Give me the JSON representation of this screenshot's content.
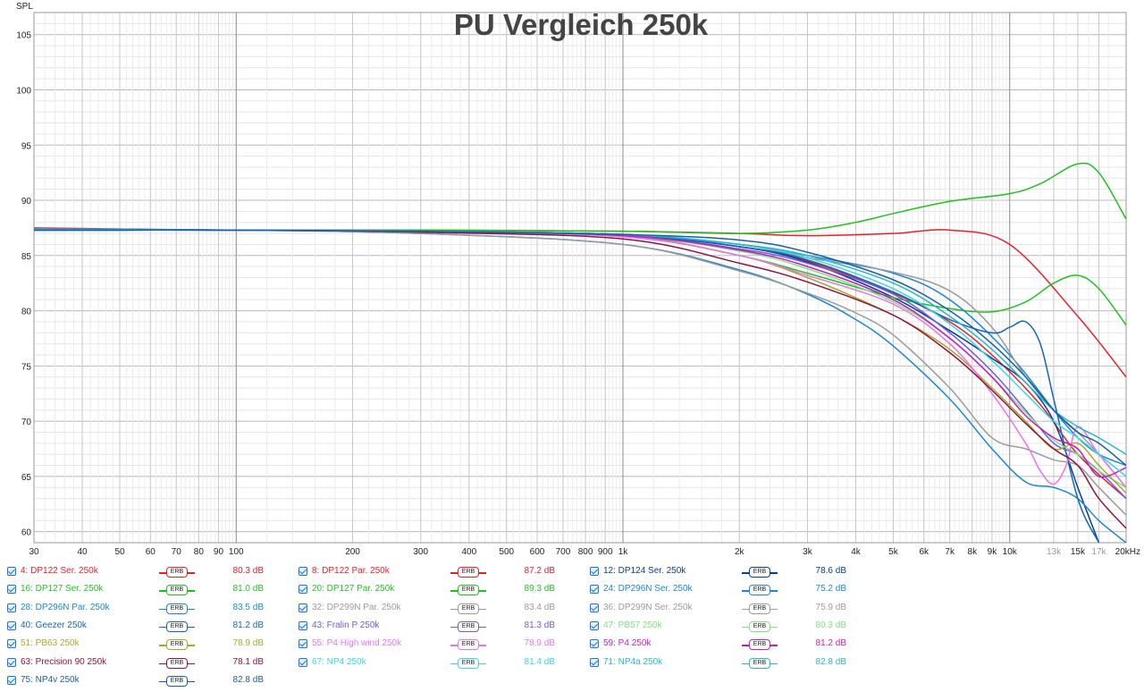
{
  "chart_data": {
    "type": "line",
    "title": "PU Vergleich 250k",
    "ylabel": "SPL",
    "x_scale": "log",
    "xlim": [
      30,
      20000
    ],
    "ylim": [
      59,
      107
    ],
    "grid": true,
    "y_ticks": [
      60,
      65,
      70,
      75,
      80,
      85,
      90,
      95,
      100,
      105
    ],
    "x_ticks": [
      {
        "v": 30,
        "label": "30",
        "light": false
      },
      {
        "v": 40,
        "label": "40",
        "light": false
      },
      {
        "v": 50,
        "label": "50",
        "light": false
      },
      {
        "v": 60,
        "label": "60",
        "light": false
      },
      {
        "v": 70,
        "label": "70",
        "light": false
      },
      {
        "v": 80,
        "label": "80",
        "light": false
      },
      {
        "v": 90,
        "label": "90",
        "light": false
      },
      {
        "v": 100,
        "label": "100",
        "light": false
      },
      {
        "v": 200,
        "label": "200",
        "light": false
      },
      {
        "v": 300,
        "label": "300",
        "light": false
      },
      {
        "v": 400,
        "label": "400",
        "light": false
      },
      {
        "v": 500,
        "label": "500",
        "light": false
      },
      {
        "v": 600,
        "label": "600",
        "light": false
      },
      {
        "v": 700,
        "label": "700",
        "light": false
      },
      {
        "v": 800,
        "label": "800",
        "light": false
      },
      {
        "v": 900,
        "label": "900",
        "light": false
      },
      {
        "v": 1000,
        "label": "1k",
        "light": false
      },
      {
        "v": 2000,
        "label": "2k",
        "light": false
      },
      {
        "v": 3000,
        "label": "3k",
        "light": false
      },
      {
        "v": 4000,
        "label": "4k",
        "light": false
      },
      {
        "v": 5000,
        "label": "5k",
        "light": false
      },
      {
        "v": 6000,
        "label": "6k",
        "light": false
      },
      {
        "v": 7000,
        "label": "7k",
        "light": false
      },
      {
        "v": 8000,
        "label": "8k",
        "light": false
      },
      {
        "v": 9000,
        "label": "9k",
        "light": false
      },
      {
        "v": 10000,
        "label": "10k",
        "light": false
      },
      {
        "v": 13000,
        "label": "13k",
        "light": true
      },
      {
        "v": 15000,
        "label": "15k",
        "light": false
      },
      {
        "v": 17000,
        "label": "17k",
        "light": true
      },
      {
        "v": 20000,
        "label": "20kHz",
        "light": false
      }
    ],
    "legend_placement": "bottom",
    "legend_tag": "ERB",
    "series": [
      {
        "name": "4: DP122 Ser. 250k",
        "color": "#e8202a",
        "value_label": "80.3 dB",
        "x": [
          30,
          50,
          100,
          300,
          1000,
          2000,
          3000,
          5000,
          7000,
          10000,
          15000,
          20000
        ],
        "y": [
          87.5,
          87.4,
          87.3,
          87.3,
          87.2,
          87.0,
          86.8,
          87.0,
          87.3,
          86.0,
          79.5,
          74.0
        ]
      },
      {
        "name": "8: DP122 Par. 250k",
        "color": "#e8202a",
        "value_label": "87.2 dB",
        "x": [
          30,
          100,
          300,
          1000,
          2000,
          3000,
          5000,
          7000,
          9000,
          12000,
          15000,
          20000
        ],
        "y": [
          87.4,
          87.3,
          87.2,
          86.9,
          85.8,
          84.5,
          81.6,
          79.0,
          76.0,
          71.5,
          67.0,
          63.0
        ]
      },
      {
        "name": "12: DP124 Ser. 250k",
        "color": "#0b3d91",
        "value_label": "78.6 dB",
        "x": [
          30,
          100,
          300,
          1000,
          2000,
          3000,
          5000,
          7000,
          9000,
          11000,
          13000,
          15000,
          17000
        ],
        "y": [
          87.3,
          87.3,
          87.2,
          86.8,
          85.8,
          84.4,
          81.2,
          78.2,
          75.7,
          73.5,
          70.0,
          64.0,
          59.0
        ]
      },
      {
        "name": "16: DP127 Ser. 250k",
        "color": "#1ec21e",
        "value_label": "81.0 dB",
        "x": [
          30,
          100,
          300,
          1000,
          2000,
          3000,
          5000,
          7000,
          9000,
          11000,
          13000,
          15000,
          17000,
          20000
        ],
        "y": [
          87.3,
          87.3,
          87.2,
          86.8,
          85.0,
          83.4,
          81.2,
          80.2,
          79.9,
          80.8,
          82.5,
          83.2,
          82.0,
          78.7
        ]
      },
      {
        "name": "20: DP127 Par. 250k",
        "color": "#1ec21e",
        "value_label": "89.3 dB",
        "x": [
          30,
          100,
          300,
          1000,
          2000,
          3000,
          4000,
          5000,
          7000,
          10000,
          12000,
          15000,
          17000,
          20000
        ],
        "y": [
          87.4,
          87.3,
          87.3,
          87.2,
          87.0,
          87.3,
          88.0,
          88.8,
          89.9,
          90.6,
          91.5,
          93.3,
          92.5,
          88.3
        ]
      },
      {
        "name": "24: DP296N Ser. 250k",
        "color": "#1b87d6",
        "value_label": "75.2 dB",
        "x": [
          30,
          100,
          300,
          1000,
          2000,
          3000,
          4000,
          5000,
          7000,
          9000,
          11000,
          13000,
          15000,
          17000,
          20000
        ],
        "y": [
          87.4,
          87.3,
          87.0,
          86.0,
          83.7,
          81.5,
          79.2,
          76.8,
          72.0,
          67.5,
          64.5,
          64.0,
          63.0,
          61.0,
          59.0
        ]
      },
      {
        "name": "28: DP296N Par. 250k",
        "color": "#1b87d6",
        "value_label": "83.5 dB",
        "x": [
          30,
          100,
          300,
          1000,
          2000,
          3000,
          5000,
          7000,
          10000,
          13000,
          15000,
          17000,
          20000
        ],
        "y": [
          87.4,
          87.3,
          87.2,
          86.9,
          86.0,
          85.0,
          83.4,
          81.0,
          76.0,
          71.0,
          68.5,
          67.0,
          66.0
        ]
      },
      {
        "name": "32: DP299N Par. 250k",
        "color": "#9b9b9b",
        "value_label": "83.4 dB",
        "x": [
          30,
          100,
          300,
          1000,
          2000,
          3000,
          5000,
          7000,
          9000,
          11000,
          13000,
          15000,
          17000,
          20000
        ],
        "y": [
          87.4,
          87.3,
          87.2,
          86.9,
          86.0,
          84.8,
          83.5,
          81.8,
          78.5,
          74.0,
          71.0,
          69.0,
          67.0,
          64.0
        ]
      },
      {
        "name": "36: DP299N Ser. 250k",
        "color": "#9b9b9b",
        "value_label": "75.9 dB",
        "x": [
          30,
          100,
          300,
          1000,
          2000,
          3000,
          4000,
          5000,
          7000,
          9000,
          11000,
          13000,
          15000,
          17000,
          20000
        ],
        "y": [
          87.4,
          87.3,
          87.0,
          86.0,
          83.6,
          81.6,
          79.8,
          77.8,
          73.0,
          68.5,
          67.5,
          66.5,
          66.0,
          64.0,
          61.5
        ]
      },
      {
        "name": "40: Geezer 250k",
        "color": "#1566b8",
        "value_label": "81.2 dB",
        "x": [
          30,
          100,
          300,
          1000,
          2000,
          3000,
          5000,
          7000,
          9000,
          10000,
          11000,
          12000,
          13000,
          15000,
          17000
        ],
        "y": [
          87.3,
          87.3,
          87.2,
          86.9,
          85.8,
          84.6,
          81.7,
          79.2,
          78.0,
          78.5,
          79.0,
          77.0,
          72.0,
          63.0,
          59.0
        ]
      },
      {
        "name": "43: Fralin P 250k",
        "color": "#6a5de0",
        "value_label": "81.3 dB",
        "x": [
          30,
          100,
          300,
          1000,
          2000,
          3000,
          5000,
          7000,
          9000,
          11000,
          13000,
          15000,
          17000,
          20000
        ],
        "y": [
          87.3,
          87.3,
          87.2,
          86.8,
          85.6,
          84.3,
          81.5,
          78.0,
          74.5,
          71.0,
          68.0,
          67.0,
          65.5,
          63.0
        ]
      },
      {
        "name": "47: PB57 250k",
        "color": "#7fe07f",
        "value_label": "80.3 dB",
        "x": [
          30,
          100,
          300,
          1000,
          2000,
          3000,
          5000,
          7000,
          9000,
          11000,
          13000,
          15000,
          17000,
          20000
        ],
        "y": [
          87.4,
          87.3,
          87.2,
          86.8,
          85.4,
          83.8,
          80.8,
          77.5,
          74.0,
          70.8,
          68.3,
          67.0,
          65.5,
          64.0
        ]
      },
      {
        "name": "51: PB63 250k",
        "color": "#a8a82a",
        "value_label": "78.9 dB",
        "x": [
          30,
          100,
          300,
          1000,
          2000,
          3000,
          5000,
          7000,
          9000,
          11000,
          13000,
          15000,
          17000,
          20000
        ],
        "y": [
          87.4,
          87.3,
          87.2,
          86.7,
          85.0,
          83.0,
          79.6,
          76.5,
          73.0,
          70.0,
          67.5,
          68.0,
          66.0,
          63.5
        ]
      },
      {
        "name": "55: P4 High wind 250k",
        "color": "#ee72ee",
        "value_label": "78.9 dB",
        "x": [
          30,
          100,
          300,
          1000,
          2000,
          3000,
          5000,
          7000,
          9000,
          11000,
          12000,
          13000,
          14000,
          15000,
          17000,
          20000
        ],
        "y": [
          87.4,
          87.3,
          87.2,
          86.7,
          85.0,
          83.2,
          80.6,
          77.0,
          72.5,
          68.0,
          65.5,
          64.3,
          66.0,
          69.5,
          67.0,
          64.0
        ]
      },
      {
        "name": "59: P4 250k",
        "color": "#c41cc4",
        "value_label": "81.2 dB",
        "x": [
          30,
          100,
          300,
          1000,
          2000,
          3000,
          5000,
          7000,
          9000,
          11000,
          13000,
          15000,
          17000,
          20000
        ],
        "y": [
          87.4,
          87.3,
          87.2,
          86.8,
          85.5,
          84.0,
          81.0,
          77.5,
          74.0,
          70.5,
          68.5,
          67.5,
          65.0,
          65.8
        ]
      },
      {
        "name": "63: Precision 90 250k",
        "color": "#8e1340",
        "value_label": "78.1 dB",
        "x": [
          30,
          100,
          300,
          1000,
          2000,
          3000,
          5000,
          7000,
          9000,
          11000,
          13000,
          15000,
          17000,
          20000
        ],
        "y": [
          87.4,
          87.3,
          87.1,
          86.5,
          84.3,
          82.6,
          79.6,
          76.2,
          72.8,
          69.8,
          67.5,
          66.0,
          63.0,
          60.3
        ]
      },
      {
        "name": "67: NP4 250k",
        "color": "#39d8e8",
        "value_label": "81.4 dB",
        "x": [
          30,
          100,
          300,
          1000,
          2000,
          3000,
          5000,
          7000,
          9000,
          11000,
          13000,
          15000,
          17000,
          20000
        ],
        "y": [
          87.4,
          87.3,
          87.2,
          86.9,
          86.0,
          84.8,
          82.0,
          78.8,
          75.5,
          72.5,
          70.0,
          68.5,
          67.0,
          65.0
        ]
      },
      {
        "name": "71: NP4a 250k",
        "color": "#29b7c9",
        "value_label": "82.8 dB",
        "x": [
          30,
          100,
          300,
          1000,
          2000,
          3000,
          5000,
          7000,
          9000,
          11000,
          13000,
          15000,
          17000,
          20000
        ],
        "y": [
          87.4,
          87.3,
          87.2,
          86.9,
          86.0,
          85.0,
          82.5,
          79.5,
          76.5,
          73.5,
          71.0,
          69.5,
          68.5,
          67.0
        ]
      },
      {
        "name": "75: NP4v 250k",
        "color": "#1a5fa0",
        "value_label": "82.8 dB",
        "x": [
          30,
          100,
          300,
          1000,
          2000,
          3000,
          5000,
          7000,
          9000,
          11000,
          13000,
          15000,
          17000,
          20000
        ],
        "y": [
          87.3,
          87.3,
          87.2,
          86.9,
          86.4,
          85.3,
          82.8,
          80.0,
          77.0,
          74.0,
          71.0,
          69.0,
          68.0,
          66.0
        ]
      }
    ]
  }
}
